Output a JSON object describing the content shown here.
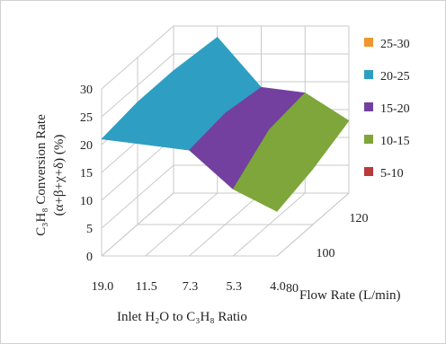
{
  "chart_data": {
    "type": "surface",
    "y_axis": {
      "label_line1": "C₃H₈ Conversion Rate",
      "label_line2": "(α+β+χ+δ)  (%)",
      "ticks": [
        "0",
        "5",
        "10",
        "15",
        "20",
        "25",
        "30"
      ],
      "ylim": [
        0,
        30
      ]
    },
    "x_axis": {
      "label": "Inlet H₂O to C₃H₈ Ratio",
      "categories": [
        "19.0",
        "11.5",
        "7.3",
        "5.3",
        "4.0"
      ]
    },
    "depth_axis": {
      "label": "Flow Rate (L/min)",
      "categories": [
        "80",
        "100",
        "120"
      ]
    },
    "grid": true,
    "legend_position": "right",
    "bands": [
      {
        "name": "25-30",
        "color": "#f0962f",
        "min": 25,
        "max": 30
      },
      {
        "name": "20-25",
        "color": "#2e9fc2",
        "min": 20,
        "max": 25
      },
      {
        "name": "15-20",
        "color": "#7340a0",
        "min": 15,
        "max": 20
      },
      {
        "name": "10-15",
        "color": "#7ea63a",
        "min": 10,
        "max": 15
      },
      {
        "name": "5-10",
        "color": "#b83a3a",
        "min": 5,
        "max": 10
      }
    ],
    "surface_values": [
      [
        21,
        20,
        19,
        12,
        8
      ],
      [
        22,
        21,
        20,
        17,
        10
      ],
      [
        22,
        28,
        19,
        18,
        13
      ]
    ]
  }
}
